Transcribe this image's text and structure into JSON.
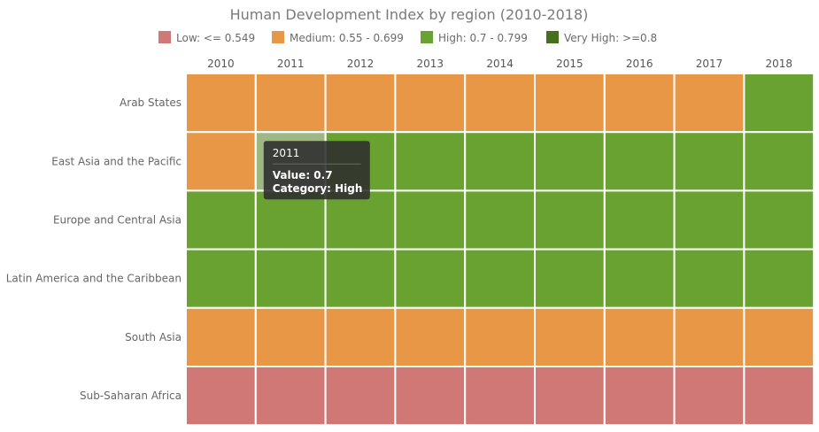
{
  "chart_data": {
    "type": "heatmap",
    "title": "Human Development Index by region (2010-2018)",
    "columns": [
      "2010",
      "2011",
      "2012",
      "2013",
      "2014",
      "2015",
      "2016",
      "2017",
      "2018"
    ],
    "rows": [
      "Arab States",
      "East Asia and the Pacific",
      "Europe and Central Asia",
      "Latin America and the Caribbean",
      "South Asia",
      "Sub-Saharan Africa"
    ],
    "legend": [
      {
        "key": "low",
        "label": "Low: <= 0.549",
        "color": "#cf7876"
      },
      {
        "key": "medium",
        "label": "Medium: 0.55 - 0.699",
        "color": "#e89746"
      },
      {
        "key": "high",
        "label": "High: 0.7 - 0.799",
        "color": "#6aa232"
      },
      {
        "key": "very_high",
        "label": "Very High: >=0.8",
        "color": "#466f1e"
      }
    ],
    "categories": [
      [
        "medium",
        "medium",
        "medium",
        "medium",
        "medium",
        "medium",
        "medium",
        "medium",
        "high"
      ],
      [
        "medium",
        "high",
        "high",
        "high",
        "high",
        "high",
        "high",
        "high",
        "high"
      ],
      [
        "high",
        "high",
        "high",
        "high",
        "high",
        "high",
        "high",
        "high",
        "high"
      ],
      [
        "high",
        "high",
        "high",
        "high",
        "high",
        "high",
        "high",
        "high",
        "high"
      ],
      [
        "medium",
        "medium",
        "medium",
        "medium",
        "medium",
        "medium",
        "medium",
        "medium",
        "medium"
      ],
      [
        "low",
        "low",
        "low",
        "low",
        "low",
        "low",
        "low",
        "low",
        "low"
      ]
    ],
    "legend_position": "top-center",
    "x_axis_position": "top"
  },
  "tooltip": {
    "row": 1,
    "col": 1,
    "title": "2011",
    "value_text": "Value: 0.7",
    "category_text": "Category: High"
  }
}
